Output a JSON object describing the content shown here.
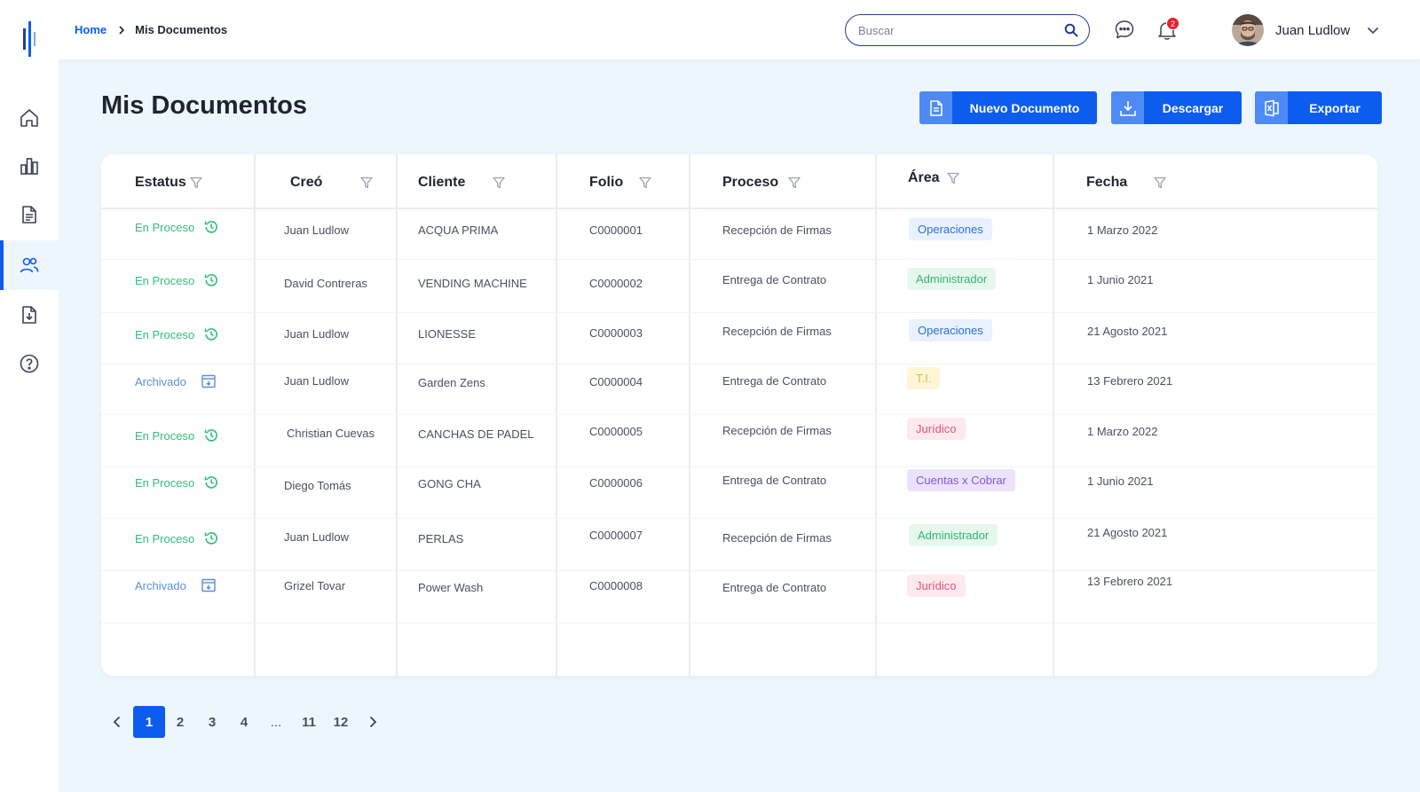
{
  "header": {
    "breadcrumb": {
      "home": "Home",
      "current": "Mis Documentos"
    },
    "search_placeholder": "Buscar",
    "notifications_count": "2",
    "user_name": "Juan Ludlow"
  },
  "sidebar": {
    "items": [
      {
        "name": "home",
        "icon": "home-icon"
      },
      {
        "name": "reports",
        "icon": "bar-chart-icon"
      },
      {
        "name": "documents",
        "icon": "document-icon"
      },
      {
        "name": "users",
        "icon": "users-icon",
        "active": true
      },
      {
        "name": "downloads",
        "icon": "file-download-icon"
      },
      {
        "name": "help",
        "icon": "help-icon"
      }
    ]
  },
  "page": {
    "title": "Mis Documentos",
    "actions": {
      "new_document": "Nuevo Documento",
      "download": "Descargar",
      "export": "Exportar"
    }
  },
  "table": {
    "columns": [
      "Estatus",
      "Creó",
      "Cliente",
      "Folio",
      "Proceso",
      "Área",
      "Fecha"
    ],
    "rows": [
      {
        "status": "En Proceso",
        "creator": "Juan Ludlow",
        "client": "ACQUA PRIMA",
        "folio": "C0000001",
        "process": "Recepción de Firmas",
        "area": "Operaciones",
        "date": "1 Marzo 2022"
      },
      {
        "status": "En Proceso",
        "creator": "David Contreras",
        "client": "VENDING MACHINE",
        "folio": "C0000002",
        "process": "Entrega de Contrato",
        "area": "Administrador",
        "date": "1 Junio 2021"
      },
      {
        "status": "En Proceso",
        "creator": "Juan Ludlow",
        "client": "LIONESSE",
        "folio": "C0000003",
        "process": "Recepción de Firmas",
        "area": "Operaciones",
        "date": "21 Agosto 2021"
      },
      {
        "status": "Archivado",
        "creator": "Juan Ludlow",
        "client": "Garden Zens",
        "folio": "C0000004",
        "process": "Entrega de Contrato",
        "area": "T.I.",
        "date": "13 Febrero 2021"
      },
      {
        "status": "En Proceso",
        "creator": "Christian Cuevas",
        "client": "CANCHAS DE PADEL",
        "folio": "C0000005",
        "process": "Recepción de Firmas",
        "area": "Jurídico",
        "date": "1 Marzo 2022"
      },
      {
        "status": "En Proceso",
        "creator": "Diego Tomás",
        "client": "GONG CHA",
        "folio": "C0000006",
        "process": "Entrega de Contrato",
        "area": "Cuentas x Cobrar",
        "date": "1 Junio 2021"
      },
      {
        "status": "En Proceso",
        "creator": "Juan Ludlow",
        "client": "PERLAS",
        "folio": "C0000007",
        "process": "Recepción de Firmas",
        "area": "Administrador",
        "date": "21 Agosto 2021"
      },
      {
        "status": "Archivado",
        "creator": "Grizel Tovar",
        "client": "Power Wash",
        "folio": "C0000008",
        "process": "Entrega de Contrato",
        "area": "Jurídico",
        "date": "13 Febrero 2021"
      }
    ]
  },
  "pagination": {
    "pages": [
      "1",
      "2",
      "3",
      "4",
      "...",
      "11",
      "12"
    ],
    "current": "1"
  },
  "colors": {
    "accent": "#0d5cf0",
    "en_proceso": "#2fbf7a",
    "archivado": "#5b8fd6",
    "tag_operaciones": {
      "bg": "#e8f1fd",
      "fg": "#2d6fd6"
    },
    "tag_administrador": {
      "bg": "#e6f8ee",
      "fg": "#33b46e"
    },
    "tag_ti": {
      "bg": "#fff6d6",
      "fg": "#e3b73a"
    },
    "tag_juridico": {
      "bg": "#fde9ee",
      "fg": "#e0567a"
    },
    "tag_cuentas": {
      "bg": "#ece3fb",
      "fg": "#8458d8"
    }
  }
}
